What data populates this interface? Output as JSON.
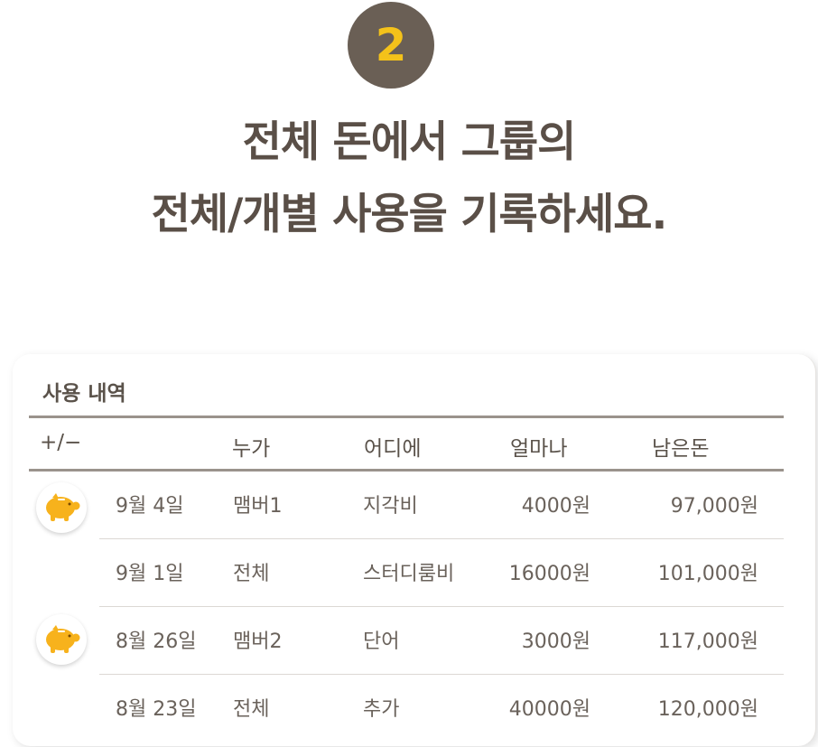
{
  "step": {
    "number": "2"
  },
  "headline": {
    "line1": "전체 돈에서 그룹의",
    "line2": "전체/개별 사용을 기록하세요."
  },
  "card": {
    "title": "사용 내역",
    "columns": {
      "type": "+/−",
      "who": "누가",
      "where": "어디에",
      "amount": "얼마나",
      "balance": "남은돈"
    },
    "rows": [
      {
        "date": "9월 4일",
        "who": "맴버1",
        "where": "지각비",
        "amount": "4000원",
        "balance": "97,000원",
        "icon": "piggy-bank-icon"
      },
      {
        "date": "9월 1일",
        "who": "전체",
        "where": "스터디룸비",
        "amount": "16000원",
        "balance": "101,000원",
        "icon": ""
      },
      {
        "date": "8월 26일",
        "who": "맴버2",
        "where": "단어",
        "amount": "3000원",
        "balance": "117,000원",
        "icon": "piggy-bank-icon"
      },
      {
        "date": "8월 23일",
        "who": "전체",
        "where": "추가",
        "amount": "40000원",
        "balance": "120,000원",
        "icon": ""
      }
    ]
  },
  "colors": {
    "badge_bg": "#6a5f55",
    "badge_number": "#f4c21a",
    "text": "#5a524a",
    "pig": "#f7b21c"
  }
}
